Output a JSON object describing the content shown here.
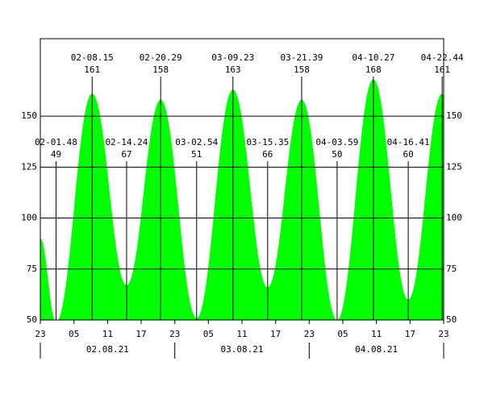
{
  "chart_data": {
    "type": "area",
    "color": "#00ff00",
    "x": [
      0,
      2.8,
      9.25,
      15.4,
      21.48,
      27.9,
      34.38,
      40.58,
      46.65,
      52.98,
      59.45,
      65.68,
      71.73,
      72
    ],
    "series": [
      {
        "values": [
          90,
          49,
          161,
          67,
          158,
          51,
          163,
          66,
          158,
          50,
          168,
          60,
          161,
          160
        ]
      }
    ],
    "xlim": [
      0,
      72
    ],
    "xticks": [
      {
        "value": 0,
        "label": "23"
      },
      {
        "value": 6,
        "label": "05"
      },
      {
        "value": 12,
        "label": "11"
      },
      {
        "value": 18,
        "label": "17"
      },
      {
        "value": 24,
        "label": "23"
      },
      {
        "value": 30,
        "label": "05"
      },
      {
        "value": 36,
        "label": "11"
      },
      {
        "value": 42,
        "label": "17"
      },
      {
        "value": 48,
        "label": "23"
      },
      {
        "value": 54,
        "label": "05"
      },
      {
        "value": 60,
        "label": "11"
      },
      {
        "value": 66,
        "label": "17"
      },
      {
        "value": 72,
        "label": "23"
      }
    ],
    "date_labels": [
      {
        "value": 12,
        "label": "02.08.21"
      },
      {
        "value": 36,
        "label": "03.08.21"
      },
      {
        "value": 60,
        "label": "04.08.21"
      }
    ],
    "ylim": [
      50,
      188
    ],
    "yticks": [
      50,
      75,
      100,
      125,
      150
    ],
    "grid": true,
    "annotations": [
      {
        "x": 2.8,
        "label": "02-01.48",
        "value": 49
      },
      {
        "x": 9.25,
        "label": "02-08.15",
        "value": 161
      },
      {
        "x": 15.4,
        "label": "02-14.24",
        "value": 67
      },
      {
        "x": 21.48,
        "label": "02-20.29",
        "value": 158
      },
      {
        "x": 27.9,
        "label": "03-02.54",
        "value": 51
      },
      {
        "x": 34.38,
        "label": "03-09.23",
        "value": 163
      },
      {
        "x": 40.58,
        "label": "03-15.35",
        "value": 66
      },
      {
        "x": 46.65,
        "label": "03-21.39",
        "value": 158
      },
      {
        "x": 52.98,
        "label": "04-03.59",
        "value": 50
      },
      {
        "x": 59.45,
        "label": "04-10.27",
        "value": 168
      },
      {
        "x": 65.68,
        "label": "04-16.41",
        "value": 60
      },
      {
        "x": 71.73,
        "label": "04-22.44",
        "value": 161
      }
    ]
  }
}
